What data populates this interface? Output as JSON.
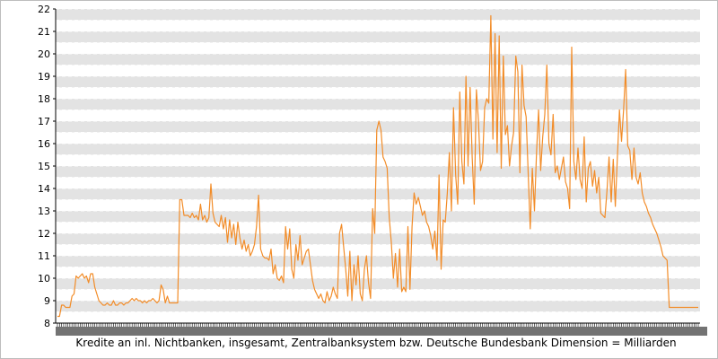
{
  "chart_data": {
    "type": "line",
    "title": "",
    "xlabel": "Kredite an inl. Nichtbanken, insgesamt, Zentralbanksystem bzw. Deutsche Bundesbank Dimension = Milliarden",
    "ylabel": "",
    "ylim": [
      8,
      22
    ],
    "yticks": [
      8,
      9,
      10,
      11,
      12,
      13,
      14,
      15,
      16,
      17,
      18,
      19,
      20,
      21,
      22
    ],
    "grid": true,
    "legend": "none",
    "line_color": "#f28c28",
    "series": [
      {
        "values": [
          8.3,
          8.3,
          8.8,
          8.8,
          8.7,
          8.7,
          8.7,
          9.2,
          9.3,
          10.1,
          10.0,
          10.1,
          10.2,
          10.0,
          10.1,
          9.8,
          10.2,
          10.2,
          9.6,
          9.3,
          9.0,
          8.9,
          8.8,
          8.8,
          8.9,
          8.8,
          8.8,
          9.0,
          8.8,
          8.8,
          8.9,
          8.9,
          8.8,
          8.9,
          8.9,
          9.0,
          9.1,
          9.0,
          9.1,
          9.0,
          9.0,
          8.9,
          9.0,
          8.9,
          9.0,
          9.0,
          9.1,
          9.0,
          8.9,
          9.0,
          9.7,
          9.5,
          8.9,
          9.2,
          8.9,
          8.9,
          8.9,
          8.9,
          8.9,
          13.5,
          13.5,
          12.8,
          12.8,
          12.8,
          12.7,
          12.9,
          12.7,
          12.8,
          12.6,
          13.3,
          12.6,
          12.8,
          12.5,
          12.7,
          14.2,
          12.9,
          12.5,
          12.4,
          12.3,
          12.8,
          12.2,
          12.7,
          11.6,
          12.6,
          11.8,
          12.4,
          11.5,
          12.5,
          11.8,
          11.3,
          11.7,
          11.2,
          11.5,
          11.0,
          11.2,
          11.5,
          12.3,
          13.7,
          11.3,
          11.0,
          10.9,
          10.9,
          10.8,
          11.3,
          10.2,
          10.6,
          10.0,
          9.9,
          10.1,
          9.8,
          12.3,
          11.3,
          12.2,
          10.4,
          10.0,
          11.5,
          10.8,
          11.9,
          10.6,
          10.9,
          11.2,
          11.3,
          10.6,
          9.9,
          9.5,
          9.3,
          9.1,
          9.3,
          9.0,
          8.9,
          9.4,
          9.0,
          9.2,
          9.6,
          9.3,
          9.1,
          12.0,
          12.4,
          11.4,
          10.4,
          9.2,
          11.2,
          9.0,
          10.6,
          9.7,
          11.0,
          9.3,
          9.0,
          10.4,
          11.0,
          9.8,
          9.1,
          13.1,
          12.0,
          16.6,
          17.0,
          16.6,
          15.4,
          15.2,
          14.9,
          12.7,
          11.6,
          10.0,
          11.1,
          9.6,
          11.3,
          9.4,
          9.6,
          9.4,
          12.3,
          9.5,
          12.3,
          13.8,
          13.3,
          13.6,
          13.2,
          12.8,
          13.0,
          12.5,
          12.3,
          11.9,
          11.3,
          12.1,
          10.8,
          14.6,
          10.4,
          12.6,
          12.5,
          13.8,
          15.6,
          13.0,
          17.6,
          14.6,
          13.3,
          18.3,
          15.2,
          14.2,
          19.0,
          15.0,
          18.5,
          15.4,
          13.3,
          18.4,
          17.0,
          14.8,
          15.2,
          17.6,
          18.0,
          17.8,
          21.7,
          16.2,
          20.9,
          15.6,
          20.8,
          14.9,
          19.9,
          16.4,
          16.8,
          15.0,
          15.9,
          16.5,
          19.9,
          19.2,
          14.7,
          19.5,
          17.7,
          17.2,
          14.7,
          12.2,
          14.9,
          13.0,
          15.6,
          17.5,
          14.8,
          16.3,
          17.3,
          19.5,
          16.0,
          15.5,
          17.3,
          14.7,
          15.0,
          14.4,
          14.9,
          15.4,
          14.3,
          14.0,
          13.1,
          20.3,
          15.2,
          14.4,
          15.8,
          14.4,
          14.0,
          16.3,
          13.4,
          14.9,
          15.2,
          14.1,
          14.8,
          13.8,
          14.5,
          12.9,
          12.8,
          12.7,
          13.9,
          15.4,
          13.4,
          15.3,
          13.2,
          15.4,
          17.5,
          16.1,
          17.5,
          19.3,
          15.9,
          15.7,
          14.4,
          15.8,
          14.5,
          14.2,
          14.7,
          13.8,
          13.4,
          13.2,
          12.9,
          12.7,
          12.4,
          12.2,
          12.0,
          11.7,
          11.4,
          11.0,
          10.9,
          10.8,
          8.7,
          8.7,
          8.7,
          8.7,
          8.7,
          8.7,
          8.7,
          8.7,
          8.7,
          8.7,
          8.7,
          8.7,
          8.7,
          8.7,
          8.7
        ]
      }
    ]
  }
}
